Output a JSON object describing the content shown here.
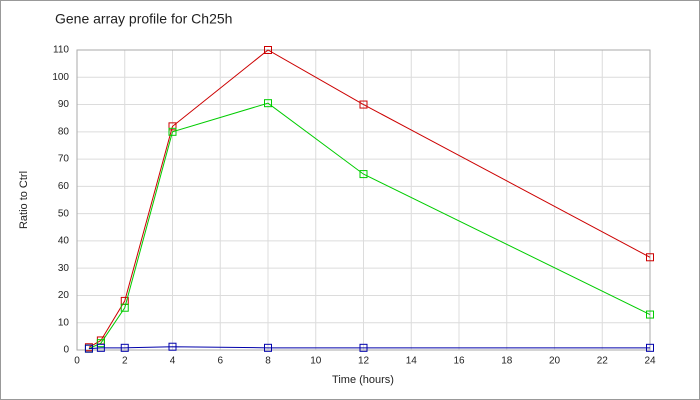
{
  "chart_data": {
    "type": "line",
    "title": "Gene array profile for Ch25h",
    "x_label": "Time (hours)",
    "y_label": "Ratio to Ctrl",
    "x": [
      0.5,
      1,
      2,
      4,
      8,
      12,
      24
    ],
    "series": [
      {
        "color": "#cc0000",
        "values": [
          1,
          3.5,
          18,
          82,
          110,
          90,
          34
        ]
      },
      {
        "color": "#00cc00",
        "values": [
          0.5,
          2.5,
          15.5,
          80,
          90.5,
          64.5,
          13
        ]
      },
      {
        "color": "#0000aa",
        "values": [
          0.5,
          0.8,
          0.8,
          1.2,
          0.8,
          0.8,
          0.8
        ]
      }
    ],
    "xlim": [
      0,
      24
    ],
    "xticks": [
      0,
      2,
      4,
      6,
      8,
      10,
      12,
      14,
      16,
      18,
      20,
      22,
      24
    ],
    "ylim": [
      0,
      110
    ],
    "yticks": [
      0,
      10,
      20,
      30,
      40,
      50,
      60,
      70,
      80,
      90,
      100,
      110
    ],
    "grid": true
  }
}
